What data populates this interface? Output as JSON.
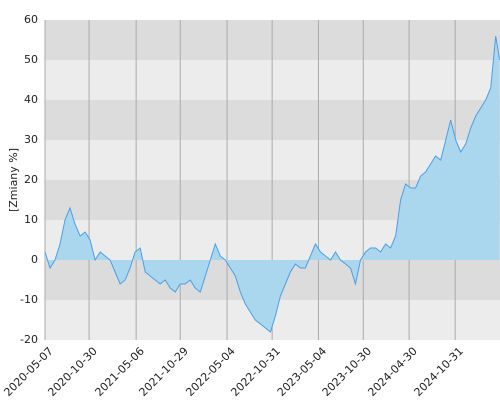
{
  "chart_data": {
    "type": "area",
    "y_label": "[Zmiany %]",
    "x": [
      "2020-05-07",
      "2020-05-27",
      "2020-06-16",
      "2020-07-06",
      "2020-07-26",
      "2020-08-15",
      "2020-09-04",
      "2020-09-24",
      "2020-10-14",
      "2020-11-03",
      "2020-11-23",
      "2020-12-13",
      "2021-01-02",
      "2021-01-22",
      "2021-02-11",
      "2021-03-03",
      "2021-03-23",
      "2021-04-12",
      "2021-05-02",
      "2021-05-22",
      "2021-06-11",
      "2021-07-01",
      "2021-07-21",
      "2021-08-10",
      "2021-08-30",
      "2021-09-19",
      "2021-10-09",
      "2021-10-29",
      "2021-11-18",
      "2021-12-08",
      "2021-12-28",
      "2022-01-17",
      "2022-02-06",
      "2022-02-26",
      "2022-03-18",
      "2022-04-07",
      "2022-04-27",
      "2022-05-17",
      "2022-06-06",
      "2022-06-26",
      "2022-07-16",
      "2022-08-05",
      "2022-08-25",
      "2022-09-14",
      "2022-10-04",
      "2022-10-24",
      "2022-11-13",
      "2022-12-03",
      "2022-12-23",
      "2023-01-12",
      "2023-02-01",
      "2023-02-21",
      "2023-03-13",
      "2023-04-02",
      "2023-04-22",
      "2023-05-12",
      "2023-06-01",
      "2023-06-21",
      "2023-07-11",
      "2023-07-31",
      "2023-08-20",
      "2023-09-09",
      "2023-09-29",
      "2023-10-19",
      "2023-11-08",
      "2023-11-28",
      "2023-12-18",
      "2024-01-07",
      "2024-01-27",
      "2024-02-16",
      "2024-03-07",
      "2024-03-27",
      "2024-04-16",
      "2024-05-06",
      "2024-05-26",
      "2024-06-15",
      "2024-07-05",
      "2024-07-25",
      "2024-08-14",
      "2024-09-03",
      "2024-09-23",
      "2024-10-13",
      "2024-11-02",
      "2024-11-22",
      "2024-12-12",
      "2025-01-01",
      "2025-01-21",
      "2025-02-10",
      "2025-03-02",
      "2025-03-22",
      "2025-04-11",
      "2025-04-27"
    ],
    "values": [
      2,
      -2,
      0,
      4,
      10,
      13,
      9,
      6,
      7,
      5,
      0,
      2,
      1,
      0,
      -3,
      -6,
      -5,
      -2,
      2,
      3,
      -3,
      -4,
      -5,
      -6,
      -5,
      -7,
      -8,
      -6,
      -6,
      -5,
      -7,
      -8,
      -4,
      0,
      4,
      1,
      0,
      -2,
      -4,
      -8,
      -11,
      -13,
      -15,
      -16,
      -17,
      -18,
      -14,
      -9,
      -6,
      -3,
      -1,
      -2,
      -2,
      1,
      4,
      2,
      1,
      0,
      2,
      0,
      -1,
      -2,
      -6,
      0,
      2,
      3,
      3,
      2,
      4,
      3,
      6,
      15,
      19,
      18,
      18,
      21,
      22,
      24,
      26,
      25,
      30,
      35,
      30,
      27,
      29,
      33,
      36,
      38,
      40,
      43,
      56,
      50
    ],
    "color": "#4a9fe8",
    "fill_color": "#aad7ee",
    "band_colors": [
      "#ececec",
      "#dcdcdc"
    ],
    "grid_color": "#aaaaaa",
    "xlim": [
      "2020-05-07",
      "2025-04-28"
    ],
    "xticks": [
      "2020-05-07",
      "2020-10-30",
      "2021-05-06",
      "2021-10-29",
      "2022-05-04",
      "2022-10-31",
      "2023-05-04",
      "2023-10-30",
      "2024-04-30",
      "2024-10-31"
    ],
    "ylim": [
      -20,
      60
    ],
    "yticks": [
      -20,
      -10,
      0,
      10,
      20,
      30,
      40,
      50,
      60
    ]
  }
}
